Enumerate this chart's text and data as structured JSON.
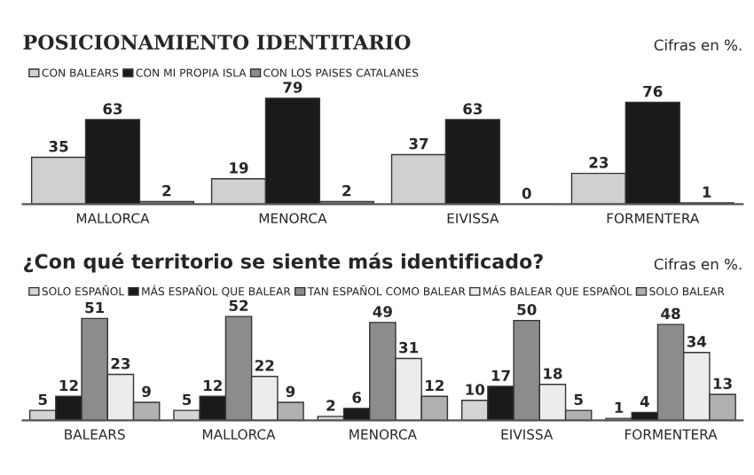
{
  "chart_data": [
    {
      "type": "bar",
      "title": "POSICIONAMIENTO IDENTITARIO",
      "annotations": [
        "Cifras en %."
      ],
      "categories": [
        "MALLORCA",
        "MENORCA",
        "EIVISSA",
        "FORMENTERA"
      ],
      "legend": "top left",
      "grid": false,
      "data_labels": true,
      "series": [
        {
          "name": "CON BALEARS",
          "color": "#d0d0d0",
          "values": [
            35,
            19,
            37,
            23
          ]
        },
        {
          "name": "CON MI PROPIA ISLA",
          "color": "#1a1a1a",
          "values": [
            63,
            79,
            63,
            76
          ]
        },
        {
          "name": "CON LOS PAISES CATALANES",
          "color": "#8c8c8c",
          "values": [
            2,
            2,
            0,
            1
          ]
        }
      ]
    },
    {
      "type": "bar",
      "title": "¿Con qué territorio se siente más identificado?",
      "annotations": [
        "Cifras en %."
      ],
      "categories": [
        "BALEARS",
        "MALLORCA",
        "MENORCA",
        "EIVISSA",
        "FORMENTERA"
      ],
      "legend": "top left",
      "grid": false,
      "data_labels": true,
      "series": [
        {
          "name": "SOLO ESPAÑOL",
          "color": "#d4d4d4",
          "values": [
            5,
            5,
            2,
            10,
            1
          ]
        },
        {
          "name": "MÁS ESPAÑOL QUE BALEAR",
          "color": "#1a1a1a",
          "values": [
            12,
            12,
            6,
            17,
            4
          ]
        },
        {
          "name": "TAN ESPAÑOL COMO BALEAR",
          "color": "#8c8c8c",
          "values": [
            51,
            52,
            49,
            50,
            48
          ]
        },
        {
          "name": "MÁS BALEAR QUE ESPAÑOL",
          "color": "#ececec",
          "values": [
            23,
            22,
            31,
            18,
            34
          ]
        },
        {
          "name": "SOLO BALEAR",
          "color": "#b0b0b0",
          "values": [
            9,
            9,
            12,
            5,
            13
          ]
        }
      ]
    }
  ]
}
